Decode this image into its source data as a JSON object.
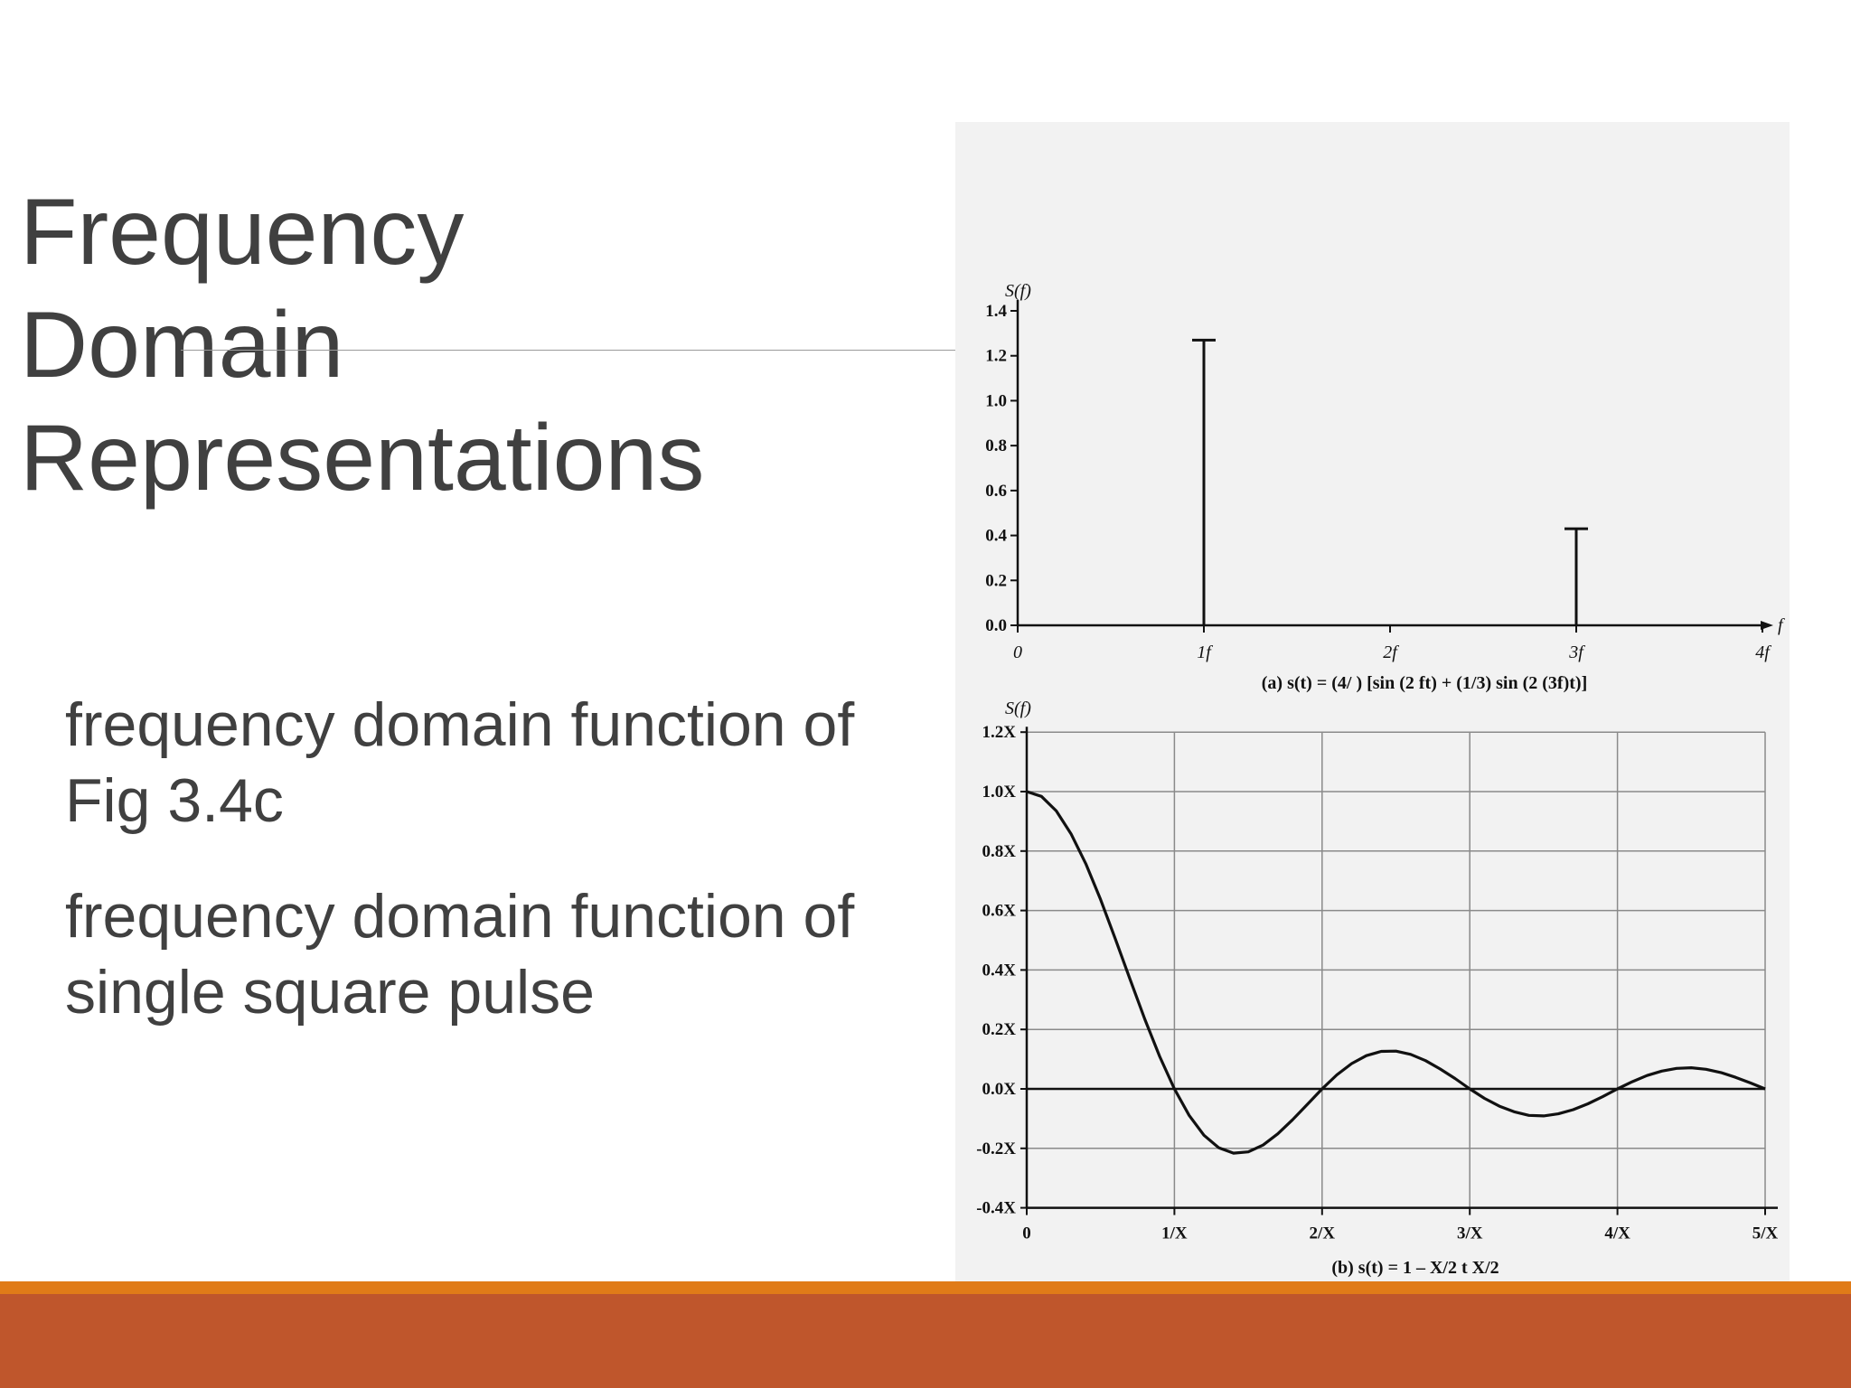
{
  "slide": {
    "title_lines": [
      "Frequency",
      "Domain",
      "Representations"
    ],
    "bullets": [
      "frequency domain function of Fig 3.4c",
      "frequency domain function of single square pulse"
    ]
  },
  "colors": {
    "text": "#404040",
    "figure_background": "#f2f2f2",
    "band_orange": "#e07b18",
    "band_rust": "#bf562c"
  },
  "chart_data": [
    {
      "type": "bar",
      "ylabel": "S(f)",
      "xlabel": "f",
      "ylim": [
        0,
        1.4
      ],
      "yticks": [
        "0.0",
        "0.2",
        "0.4",
        "0.6",
        "0.8",
        "1.0",
        "1.2",
        "1.4"
      ],
      "xticks": [
        "0",
        "1f",
        "2f",
        "3f",
        "4f"
      ],
      "stems": [
        {
          "x": 1,
          "value": 1.27
        },
        {
          "x": 3,
          "value": 0.43
        }
      ],
      "caption": "(a) s(t) = (4/  ) [sin (2  ft) + (1/3) sin (2  (3f)t)]",
      "grid": false
    },
    {
      "type": "line",
      "ylabel": "S(f)",
      "ylim": [
        -0.4,
        1.2
      ],
      "xlim": [
        0,
        5
      ],
      "yticks": [
        "-0.4X",
        "-0.2X",
        "0.0X",
        "0.2X",
        "0.4X",
        "0.6X",
        "0.8X",
        "1.0X",
        "1.2X"
      ],
      "xticks": [
        "0",
        "1/X",
        "2/X",
        "3/X",
        "4/X",
        "5/X"
      ],
      "series": [
        {
          "x": [
            0,
            0.1,
            0.2,
            0.3,
            0.4,
            0.5,
            0.6,
            0.7,
            0.8,
            0.9,
            1.0,
            1.1,
            1.2,
            1.3,
            1.4,
            1.5,
            1.6,
            1.7,
            1.8,
            1.9,
            2.0,
            2.1,
            2.2,
            2.3,
            2.4,
            2.5,
            2.6,
            2.7,
            2.8,
            2.9,
            3.0,
            3.1,
            3.2,
            3.3,
            3.4,
            3.5,
            3.6,
            3.7,
            3.8,
            3.9,
            4.0,
            4.1,
            4.2,
            4.3,
            4.4,
            4.5,
            4.6,
            4.7,
            4.8,
            4.9,
            5.0
          ],
          "values": [
            1.0,
            0.984,
            0.935,
            0.858,
            0.757,
            0.637,
            0.505,
            0.368,
            0.234,
            0.109,
            0.0,
            -0.089,
            -0.156,
            -0.198,
            -0.216,
            -0.212,
            -0.189,
            -0.151,
            -0.104,
            -0.052,
            0.0,
            0.047,
            0.085,
            0.112,
            0.126,
            0.127,
            0.116,
            0.095,
            0.067,
            0.035,
            0.0,
            -0.032,
            -0.058,
            -0.077,
            -0.089,
            -0.091,
            -0.084,
            -0.07,
            -0.05,
            -0.026,
            0.0,
            0.024,
            0.045,
            0.06,
            0.069,
            0.071,
            0.066,
            0.055,
            0.039,
            0.02,
            0.0
          ]
        }
      ],
      "caption": "(b) s(t) = 1        – X/2    t    X/2",
      "grid": true
    }
  ]
}
